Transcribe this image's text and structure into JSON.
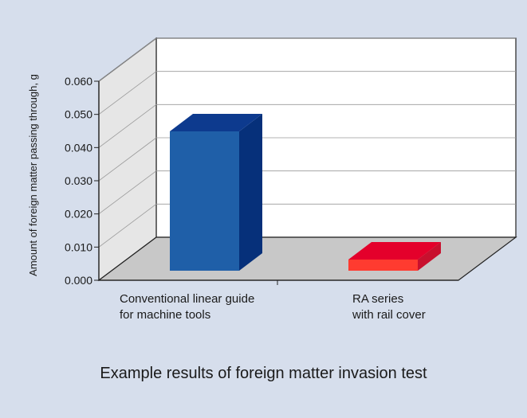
{
  "caption": "Example results of foreign matter invasion test",
  "chart_data": {
    "type": "bar",
    "style": "3d",
    "title": "",
    "ylabel": "Amount of foreign matter passing through, g",
    "xlabel": "",
    "ylim": [
      0,
      0.06
    ],
    "yticks": [
      "0.000",
      "0.010",
      "0.020",
      "0.030",
      "0.040",
      "0.050",
      "0.060"
    ],
    "categories": [
      [
        "Conventional linear guide",
        "for machine tools"
      ],
      [
        "RA series",
        "with rail cover"
      ]
    ],
    "values": [
      0.05,
      0.004
    ],
    "bar_colors": [
      {
        "front": "#1f5fa8",
        "side": "#06307a",
        "top": "#0d3a8e"
      },
      {
        "front": "#ff3b30",
        "side": "#c8102e",
        "top": "#e4002b"
      }
    ],
    "grid": true,
    "colors": {
      "background": "#d6deec",
      "back_wall": "#ffffff",
      "side_wall": "#e6e6e6",
      "floor": "#c8c8c8",
      "grid": "#9a9a9a"
    }
  }
}
